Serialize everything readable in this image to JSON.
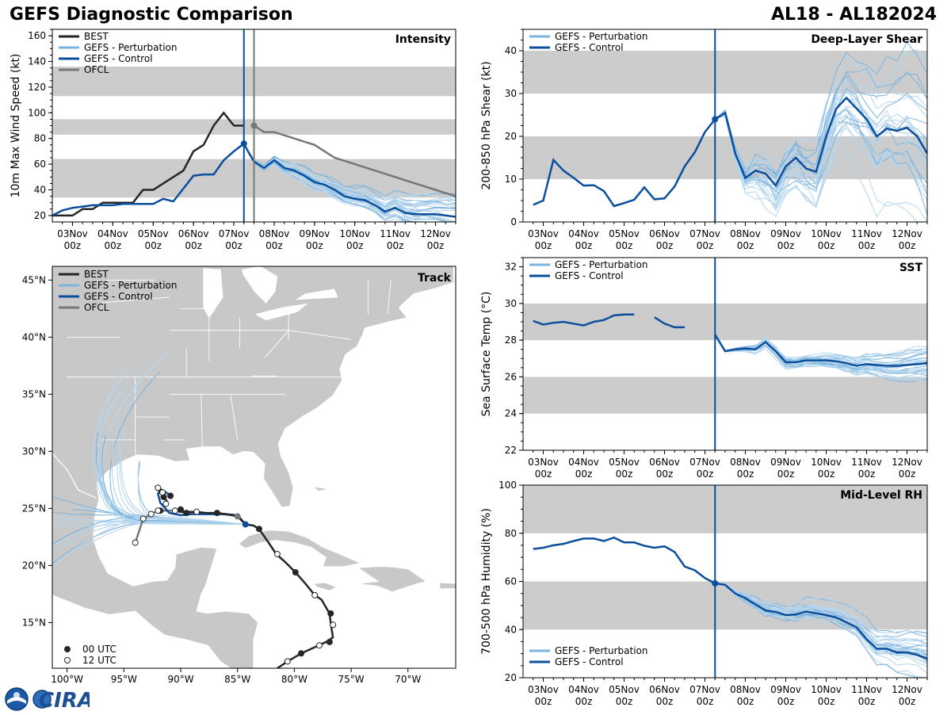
{
  "header": {
    "title_left": "GEFS Diagnostic Comparison",
    "title_right": "AL18 - AL182024"
  },
  "logo": {
    "text": "CIRA"
  },
  "colors": {
    "best": "#262626",
    "pert": "#7db4de",
    "pert_light": "#b5d6ee",
    "control": "#0b4f9c",
    "ofcl": "#777777",
    "band": "#cccccc",
    "land": "#c8c8c8",
    "border": "#ffffff"
  },
  "time_axis": {
    "ticks": [
      {
        "t": 0.0,
        "top": "03Nov",
        "bottom": "00z"
      },
      {
        "t": 1.0,
        "top": "04Nov",
        "bottom": "00z"
      },
      {
        "t": 2.0,
        "top": "05Nov",
        "bottom": "00z"
      },
      {
        "t": 3.0,
        "top": "06Nov",
        "bottom": "00z"
      },
      {
        "t": 4.0,
        "top": "07Nov",
        "bottom": "00z"
      },
      {
        "t": 5.0,
        "top": "08Nov",
        "bottom": "00z"
      },
      {
        "t": 6.0,
        "top": "09Nov",
        "bottom": "00z"
      },
      {
        "t": 7.0,
        "top": "10Nov",
        "bottom": "00z"
      },
      {
        "t": 8.0,
        "top": "11Nov",
        "bottom": "00z"
      },
      {
        "t": 9.0,
        "top": "12Nov",
        "bottom": "00z"
      }
    ],
    "xlim": [
      -0.5,
      9.5
    ],
    "init_time": 4.25,
    "ofcl_time": 4.5
  },
  "chart_data": [
    {
      "id": "intensity",
      "type": "line",
      "title": "Intensity",
      "ylabel": "10m Max Wind Speed (kt)",
      "ylim": [
        15,
        165
      ],
      "yticks": [
        20,
        40,
        60,
        80,
        100,
        120,
        140,
        160
      ],
      "bands": [
        [
          34,
          64
        ],
        [
          83,
          95
        ],
        [
          113,
          136
        ]
      ],
      "legend": [
        "BEST",
        "GEFS - Perturbation",
        "GEFS - Control",
        "OFCL"
      ],
      "best": {
        "x": [
          -0.5,
          0.0,
          0.25,
          0.5,
          0.75,
          1.0,
          1.25,
          1.5,
          1.75,
          2.0,
          2.25,
          2.5,
          2.75,
          3.0,
          3.25,
          3.5,
          3.75,
          4.0
        ],
        "y": [
          20,
          20,
          25,
          25,
          30,
          30,
          30,
          30,
          40,
          40,
          45,
          50,
          55,
          70,
          75,
          90,
          100,
          90
        ]
      },
      "best_end": {
        "x": [
          4.0,
          4.25
        ],
        "y": [
          90,
          90
        ]
      },
      "control": {
        "x": [
          -0.5,
          -0.25,
          0.0,
          0.25,
          0.5,
          0.75,
          1.0,
          1.25,
          1.5,
          1.75,
          2.0,
          2.25,
          2.5,
          2.75,
          3.0,
          3.25,
          3.5,
          3.75,
          4.0,
          4.25,
          4.35,
          4.5,
          4.75,
          5.0,
          5.25,
          5.5,
          5.75,
          6.0,
          6.25,
          6.5,
          6.75,
          7.0,
          7.25,
          7.5,
          7.75,
          8.0,
          8.25,
          8.5,
          8.75,
          9.0,
          9.25,
          9.5
        ],
        "y": [
          20,
          24,
          26,
          27,
          28,
          28,
          28,
          29,
          29,
          29,
          29,
          33,
          31,
          41,
          51,
          52,
          52,
          63,
          70,
          76,
          70,
          62,
          57,
          63,
          57,
          55,
          51,
          46,
          44,
          40,
          35,
          33,
          32,
          28,
          23,
          26,
          22,
          21,
          21,
          21,
          20,
          19
        ]
      },
      "ofcl": {
        "x": [
          4.5,
          4.75,
          5.0,
          5.5,
          6.0,
          6.5,
          7.0,
          7.5,
          8.0,
          8.5,
          9.0,
          9.5
        ],
        "y": [
          90,
          85,
          85,
          80,
          75,
          65,
          60,
          55,
          50,
          45,
          40,
          35
        ]
      },
      "perturbation_count": 30
    },
    {
      "id": "shear",
      "type": "line",
      "title": "Deep-Layer Shear",
      "ylabel": "200-850 hPa Shear (kt)",
      "ylim": [
        0,
        45
      ],
      "yticks": [
        0,
        10,
        20,
        30,
        40
      ],
      "bands": [
        [
          10,
          20
        ],
        [
          30,
          40
        ]
      ],
      "legend": [
        "GEFS - Perturbation",
        "GEFS - Control"
      ],
      "control": {
        "x": [
          -0.25,
          -0.0,
          0.25,
          0.5,
          0.75,
          1.0,
          1.25,
          1.5,
          1.75,
          2.0,
          2.25,
          2.5,
          2.75,
          3.0,
          3.25,
          3.5,
          3.75,
          4.0,
          4.25,
          4.5,
          4.75,
          5.0,
          5.25,
          5.5,
          5.75,
          6.0,
          6.25,
          6.5,
          6.75,
          7.0,
          7.25,
          7.5,
          7.75,
          8.0,
          8.25,
          8.5,
          8.75,
          9.0,
          9.25,
          9.5
        ],
        "y": [
          4,
          5,
          14.5,
          12,
          10.3,
          8.5,
          8.6,
          7.2,
          3.7,
          4.4,
          5.2,
          8.1,
          5.3,
          5.5,
          8.3,
          13,
          16.3,
          21,
          24,
          25.5,
          16,
          10.3,
          12,
          11.3,
          8.5,
          13,
          15,
          12.5,
          11.7,
          20,
          26.5,
          29,
          26.5,
          24,
          20,
          21.8,
          21.3,
          22,
          20,
          16
        ]
      },
      "perturbation_count": 30
    },
    {
      "id": "sst",
      "type": "line",
      "title": "SST",
      "ylabel": "Sea Surface Temp (°C)",
      "ylim": [
        22,
        32.5
      ],
      "yticks": [
        22,
        24,
        26,
        28,
        30,
        32
      ],
      "bands": [
        [
          24,
          26
        ],
        [
          28,
          30
        ]
      ],
      "legend": [
        "GEFS - Perturbation",
        "GEFS - Control"
      ],
      "control_a": {
        "x": [
          -0.25,
          0.0,
          0.25,
          0.5,
          0.75,
          1.0,
          1.25,
          1.5,
          1.75,
          2.0,
          2.25
        ],
        "y": [
          29.05,
          28.85,
          28.95,
          29.0,
          28.9,
          28.8,
          29.0,
          29.1,
          29.35,
          29.4,
          29.4
        ]
      },
      "control_b": {
        "x": [
          2.75,
          3.0,
          3.25,
          3.5
        ],
        "y": [
          29.25,
          28.9,
          28.7,
          28.7
        ]
      },
      "control_c": {
        "x": [
          4.25,
          4.5,
          4.75,
          5.0,
          5.25,
          5.5,
          5.75,
          6.0,
          6.25,
          6.5,
          6.75,
          7.0,
          7.25,
          7.5,
          7.75,
          8.0,
          8.25,
          8.5,
          8.75,
          9.0,
          9.25,
          9.5
        ],
        "y": [
          28.3,
          27.4,
          27.5,
          27.55,
          27.5,
          27.9,
          27.4,
          26.8,
          26.8,
          26.9,
          26.9,
          26.9,
          26.85,
          26.75,
          26.6,
          26.7,
          26.65,
          26.6,
          26.6,
          26.65,
          26.7,
          26.75
        ]
      },
      "perturbation_count": 30
    },
    {
      "id": "rh",
      "type": "line",
      "title": "Mid-Level RH",
      "ylabel": "700-500 hPa Humidity (%)",
      "ylim": [
        20,
        100
      ],
      "yticks": [
        20,
        40,
        60,
        80,
        100
      ],
      "bands": [
        [
          40,
          60
        ],
        [
          80,
          100
        ]
      ],
      "legend": [
        "GEFS - Perturbation",
        "GEFS - Control"
      ],
      "control": {
        "x": [
          -0.25,
          0.0,
          0.25,
          0.5,
          0.75,
          1.0,
          1.25,
          1.5,
          1.75,
          2.0,
          2.25,
          2.5,
          2.75,
          3.0,
          3.25,
          3.5,
          3.75,
          4.0,
          4.25,
          4.5,
          4.75,
          5.0,
          5.25,
          5.5,
          5.75,
          6.0,
          6.25,
          6.5,
          6.75,
          7.0,
          7.25,
          7.5,
          7.75,
          8.0,
          8.25,
          8.5,
          8.75,
          9.0,
          9.25,
          9.5
        ],
        "y": [
          73.5,
          74,
          75,
          75.6,
          76.8,
          77.8,
          77.8,
          76.8,
          78.2,
          76.2,
          76.2,
          74.8,
          74,
          74.6,
          72.2,
          66.2,
          64.6,
          61.4,
          59.2,
          58.6,
          55,
          53,
          50.5,
          48,
          47.3,
          46,
          46.3,
          47.5,
          46.8,
          46,
          45,
          43,
          41,
          36,
          32,
          32,
          30.5,
          30.5,
          29.5,
          28
        ]
      },
      "perturbation_count": 30
    },
    {
      "id": "track",
      "type": "scatter",
      "title": "Track",
      "xlim": [
        -101.3,
        -65.8
      ],
      "ylim": [
        11.0,
        46.2
      ],
      "xticks": [
        -100,
        -95,
        -90,
        -85,
        -80,
        -75,
        -70
      ],
      "xtick_labels": [
        "100°W",
        "95°W",
        "90°W",
        "85°W",
        "80°W",
        "75°W",
        "70°W"
      ],
      "yticks": [
        15,
        20,
        25,
        30,
        35,
        40,
        45
      ],
      "ytick_labels": [
        "15°N",
        "20°N",
        "25°N",
        "30°N",
        "35°N",
        "40°N",
        "45°N"
      ],
      "legend": [
        "BEST",
        "GEFS - Perturbation",
        "GEFS - Control",
        "OFCL"
      ],
      "marker_legend": [
        "00 UTC",
        "12 UTC"
      ],
      "best_track": {
        "lon": [
          -81.5,
          -80.6,
          -79.4,
          -77.2,
          -76.6,
          -76.8,
          -76.9,
          -77.6,
          -78.2,
          -79.1,
          -79.9,
          -80.8,
          -81.6,
          -82.2,
          -83.1,
          -83.6,
          -84.3,
          -85.0,
          -86.0,
          -86.8,
          -87.8,
          -88.6,
          -89.6,
          -90.5,
          -91.2,
          -91.6,
          -91.9,
          -92.1,
          -91.3,
          -91.6,
          -91.8,
          -92.1
        ],
        "lat": [
          11.0,
          11.6,
          12.3,
          13.3,
          13.7,
          15.0,
          15.8,
          17.0,
          17.4,
          18.5,
          19.4,
          20.3,
          21.0,
          21.9,
          23.2,
          23.5,
          23.6,
          24.3,
          24.5,
          24.6,
          24.6,
          24.7,
          24.7,
          24.8,
          25.6,
          26.2,
          26.5,
          26.8,
          26.0,
          26.4,
          26.7,
          26.8
        ],
        "markers": [
          {
            "lon": -80.6,
            "lat": 11.6,
            "utc": "12"
          },
          {
            "lon": -79.4,
            "lat": 12.3,
            "utc": "00"
          },
          {
            "lon": -77.8,
            "lat": 13.0,
            "utc": "12"
          },
          {
            "lon": -76.9,
            "lat": 13.3,
            "utc": "00"
          },
          {
            "lon": -76.6,
            "lat": 14.8,
            "utc": "12"
          },
          {
            "lon": -76.8,
            "lat": 15.8,
            "utc": "00"
          },
          {
            "lon": -78.2,
            "lat": 17.4,
            "utc": "12"
          },
          {
            "lon": -79.9,
            "lat": 19.4,
            "utc": "00"
          },
          {
            "lon": -81.5,
            "lat": 21.0,
            "utc": "12"
          },
          {
            "lon": -83.1,
            "lat": 23.2,
            "utc": "00"
          },
          {
            "lon": -88.6,
            "lat": 24.7,
            "utc": "12"
          },
          {
            "lon": -86.8,
            "lat": 24.6,
            "utc": "00"
          },
          {
            "lon": -90.5,
            "lat": 24.8,
            "utc": "12"
          },
          {
            "lon": -89.5,
            "lat": 24.6,
            "utc": "00"
          },
          {
            "lon": -90.0,
            "lat": 24.9,
            "utc": "00"
          },
          {
            "lon": -91.8,
            "lat": 24.8,
            "utc": "00"
          },
          {
            "lon": -91.3,
            "lat": 25.4,
            "utc": "12"
          },
          {
            "lon": -90.9,
            "lat": 26.1,
            "utc": "00"
          },
          {
            "lon": -91.5,
            "lat": 26.0,
            "utc": "00"
          },
          {
            "lon": -91.6,
            "lat": 26.4,
            "utc": "12"
          },
          {
            "lon": -92.0,
            "lat": 26.8,
            "utc": "12"
          }
        ]
      },
      "ofcl_track": {
        "lon": [
          -84.3,
          -85.0,
          -86.5,
          -88.0,
          -89.5,
          -90.8,
          -92.0,
          -92.6,
          -93.3,
          -94.0
        ],
        "lat": [
          23.6,
          24.4,
          24.5,
          24.5,
          24.6,
          24.8,
          24.8,
          24.5,
          24.1,
          22.0
        ],
        "markers": [
          {
            "lon": -92.0,
            "lat": 24.8,
            "utc": "12"
          },
          {
            "lon": -92.6,
            "lat": 24.5,
            "utc": "12"
          },
          {
            "lon": -93.3,
            "lat": 24.1,
            "utc": "12"
          },
          {
            "lon": -94.0,
            "lat": 22.0,
            "utc": "12"
          }
        ]
      },
      "control_track": {
        "lon": [
          -84.3,
          -85.0,
          -86.0,
          -87.0,
          -88.0,
          -89.0,
          -90.0,
          -91.0,
          -91.8,
          -92.0,
          -91.6,
          -91.0
        ],
        "lat": [
          23.6,
          24.4,
          24.5,
          24.5,
          24.5,
          24.5,
          24.4,
          24.6,
          25.5,
          26.3,
          26.6,
          26.2
        ]
      },
      "current_position": {
        "lon": -84.3,
        "lat": 23.6
      },
      "perturbation_count": 30
    }
  ]
}
